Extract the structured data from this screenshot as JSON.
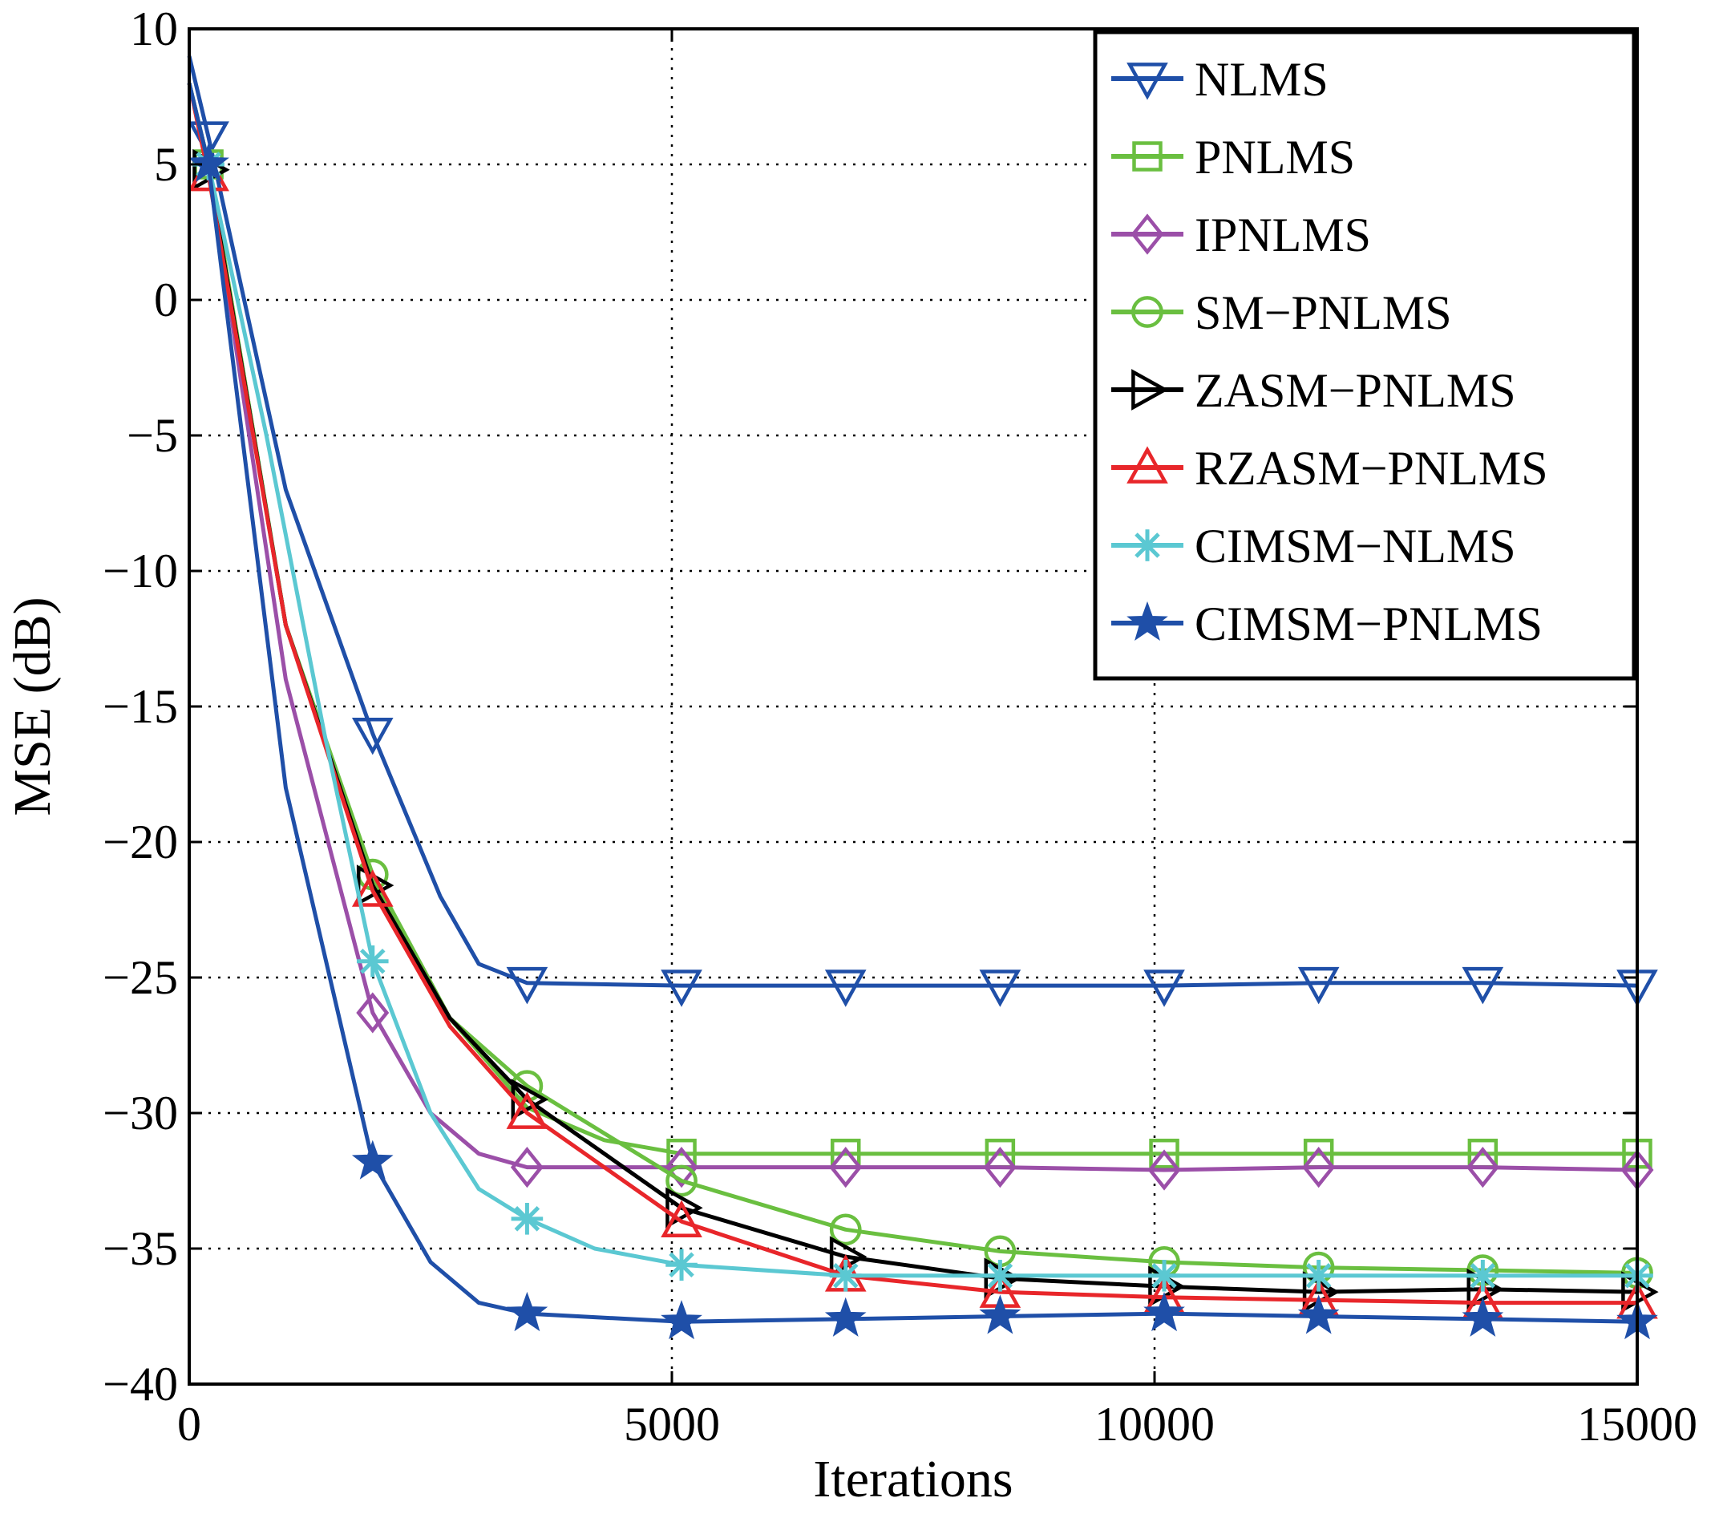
{
  "chart_data": {
    "type": "line",
    "title": "",
    "xlabel": "Iterations",
    "ylabel": "MSE (dB)",
    "xlim": [
      0,
      15000
    ],
    "ylim": [
      -40,
      10
    ],
    "xticks": [
      0,
      5000,
      10000,
      15000
    ],
    "xtick_labels": [
      "0",
      "5000",
      "10000",
      "15000"
    ],
    "yticks": [
      10,
      5,
      0,
      -5,
      -10,
      -15,
      -20,
      -25,
      -30,
      -35,
      -40
    ],
    "ytick_labels": [
      "10",
      "5",
      "0",
      "−5",
      "−10",
      "−15",
      "−20",
      "−25",
      "−30",
      "−35",
      "−40"
    ],
    "grid": true,
    "legend_position": "top-right",
    "series": [
      {
        "name": "NLMS",
        "color": "#1f4fa8",
        "marker": "triangle-down",
        "x": [
          0,
          200,
          1000,
          1900,
          2600,
          3000,
          3500,
          5100,
          6800,
          8400,
          10100,
          11700,
          13400,
          15000
        ],
        "y": [
          9,
          6,
          -7,
          -16,
          -22,
          -24.5,
          -25.2,
          -25.3,
          -25.3,
          -25.3,
          -25.3,
          -25.2,
          -25.2,
          -25.3
        ],
        "marker_x": [
          200,
          1900,
          3500,
          5100,
          6800,
          8400,
          10100,
          11700,
          13400,
          15000
        ]
      },
      {
        "name": "PNLMS",
        "color": "#6abf40",
        "marker": "square",
        "x": [
          0,
          200,
          1000,
          1900,
          2700,
          3500,
          4300,
          5100,
          6800,
          8400,
          10100,
          11700,
          13400,
          15000
        ],
        "y": [
          8,
          5,
          -12,
          -21.5,
          -26.5,
          -29.8,
          -31,
          -31.5,
          -31.5,
          -31.5,
          -31.5,
          -31.5,
          -31.5,
          -31.5
        ],
        "marker_x": [
          200,
          5100,
          6800,
          8400,
          10100,
          11700,
          13400,
          15000
        ]
      },
      {
        "name": "IPNLMS",
        "color": "#9b4fa8",
        "marker": "diamond",
        "x": [
          0,
          200,
          1000,
          1900,
          2500,
          3000,
          3500,
          5100,
          6800,
          8400,
          10100,
          11700,
          13400,
          15000
        ],
        "y": [
          8,
          5,
          -14,
          -26.3,
          -30,
          -31.5,
          -32,
          -32,
          -32,
          -32,
          -32.1,
          -32,
          -32,
          -32.1
        ],
        "marker_x": [
          1900,
          3500,
          5100,
          6800,
          8400,
          10100,
          11700,
          13400,
          15000
        ]
      },
      {
        "name": "SM−PNLMS",
        "color": "#6abf40",
        "marker": "circle",
        "x": [
          0,
          200,
          1000,
          1900,
          2700,
          3500,
          5100,
          6800,
          8400,
          10100,
          11700,
          13400,
          15000
        ],
        "y": [
          8,
          5,
          -12,
          -21.2,
          -26.5,
          -29,
          -32.5,
          -34.3,
          -35.1,
          -35.5,
          -35.7,
          -35.8,
          -35.9
        ],
        "marker_x": [
          1900,
          3500,
          5100,
          6800,
          8400,
          10100,
          11700,
          13400,
          15000
        ]
      },
      {
        "name": "ZASM−PNLMS",
        "color": "#000000",
        "marker": "triangle-right",
        "x": [
          0,
          200,
          1000,
          1900,
          2700,
          3500,
          5100,
          6800,
          8400,
          10100,
          11700,
          13400,
          15000
        ],
        "y": [
          8,
          4.8,
          -12,
          -21.6,
          -26.5,
          -29.5,
          -33.5,
          -35.3,
          -36.1,
          -36.4,
          -36.6,
          -36.5,
          -36.6
        ],
        "marker_x": [
          200,
          1900,
          3500,
          5100,
          6800,
          8400,
          10100,
          11700,
          13400,
          15000
        ]
      },
      {
        "name": "RZASM−PNLMS",
        "color": "#e8262a",
        "marker": "triangle-up",
        "x": [
          0,
          200,
          1000,
          1900,
          2700,
          3500,
          5100,
          6800,
          8400,
          10100,
          11700,
          13400,
          15000
        ],
        "y": [
          8,
          4.6,
          -12,
          -21.8,
          -26.8,
          -30,
          -34,
          -36,
          -36.6,
          -36.8,
          -36.9,
          -37,
          -37
        ],
        "marker_x": [
          200,
          1900,
          3500,
          5100,
          6800,
          8400,
          10100,
          11700,
          13400,
          15000
        ]
      },
      {
        "name": "CIMSM−NLMS",
        "color": "#5bc8d2",
        "marker": "asterisk",
        "x": [
          0,
          200,
          800,
          1400,
          1900,
          2500,
          3000,
          3500,
          4200,
          5100,
          6800,
          8400,
          10100,
          11700,
          13400,
          15000
        ],
        "y": [
          8,
          5,
          -5,
          -16,
          -24.4,
          -30,
          -32.8,
          -33.9,
          -35,
          -35.6,
          -36,
          -36,
          -36,
          -36,
          -36,
          -36
        ],
        "marker_x": [
          200,
          1900,
          3500,
          5100,
          6800,
          8400,
          10100,
          11700,
          13400,
          15000
        ]
      },
      {
        "name": "CIMSM−PNLMS",
        "color": "#1f4fa8",
        "marker": "star",
        "x": [
          0,
          200,
          1000,
          1900,
          2500,
          3000,
          3500,
          5100,
          6800,
          8400,
          10100,
          11700,
          13400,
          15000
        ],
        "y": [
          8,
          5,
          -18,
          -31.8,
          -35.5,
          -37,
          -37.4,
          -37.7,
          -37.6,
          -37.5,
          -37.4,
          -37.5,
          -37.6,
          -37.7
        ],
        "marker_x": [
          200,
          1900,
          3500,
          5100,
          6800,
          8400,
          10100,
          11700,
          13400,
          15000
        ]
      }
    ]
  }
}
